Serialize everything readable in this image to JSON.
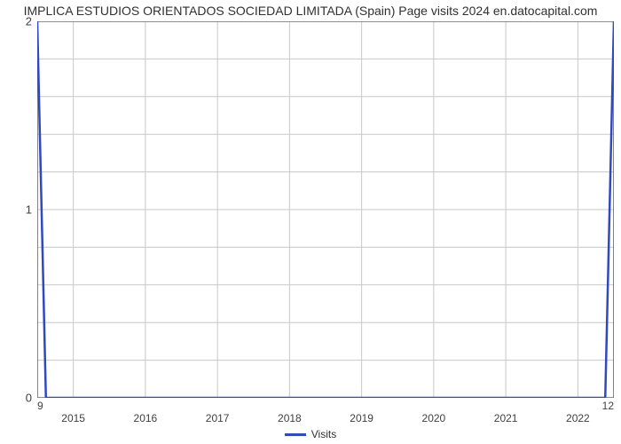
{
  "chart": {
    "type": "line",
    "title": "IMPLICA ESTUDIOS ORIENTADOS SOCIEDAD LIMITADA (Spain) Page visits 2024 en.datocapital.com",
    "background_color": "#ffffff",
    "grid_color": "#c8c8c8",
    "axis_color": "#696969",
    "tick_font_size": 13,
    "title_font_size": 14,
    "x_axis": {
      "min": 2014.5,
      "max": 2022.5,
      "ticks": [
        2015,
        2016,
        2017,
        2018,
        2019,
        2020,
        2021,
        2022
      ]
    },
    "y_axis": {
      "min": 0,
      "max": 2,
      "ticks": [
        0,
        1,
        2
      ],
      "minor_count_between": 4
    },
    "corner_bottom_left": "9",
    "corner_bottom_right": "12",
    "series": {
      "name": "Visits",
      "color": "#3048c0",
      "line_width": 2.5,
      "x": [
        2014.5,
        2014.62,
        2022.38,
        2022.5
      ],
      "y": [
        2.0,
        0.0,
        0.0,
        2.0
      ]
    },
    "legend": {
      "label": "Visits",
      "swatch_color": "#3048c0"
    }
  }
}
